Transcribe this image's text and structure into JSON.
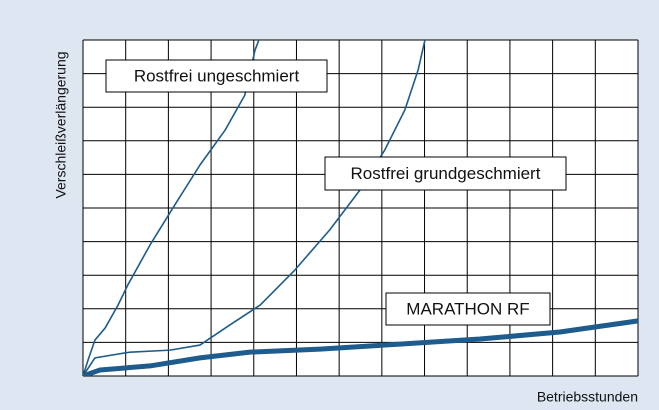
{
  "chart_data": {
    "type": "line",
    "xlabel": "Betriebsstunden",
    "ylabel": "Verschleißverlängerung",
    "xlim": [
      0,
      13
    ],
    "ylim": [
      0,
      10
    ],
    "xticks": [
      0,
      1,
      2,
      3,
      4,
      5,
      6,
      7,
      8,
      9,
      10,
      11,
      12,
      13
    ],
    "yticks": [
      0,
      1,
      2,
      3,
      4,
      5,
      6,
      7,
      8,
      9,
      10
    ],
    "grid": true,
    "series": [
      {
        "name": "Rostfrei ungeschmiert",
        "color": "#1d5c8c",
        "width": 1.6,
        "x": [
          0,
          0.12,
          0.28,
          0.52,
          0.82,
          1.05,
          1.57,
          2.15,
          2.74,
          3.33,
          3.79,
          4.03,
          4.12
        ],
        "values": [
          0,
          0.48,
          1.07,
          1.43,
          2.11,
          2.71,
          3.9,
          5.09,
          6.28,
          7.32,
          8.36,
          9.7,
          10
        ]
      },
      {
        "name": "Rostfrei grundgeschmiert",
        "color": "#1d5c8c",
        "width": 1.6,
        "x": [
          0,
          0.28,
          1.1,
          2.04,
          2.74,
          3.44,
          4.15,
          4.96,
          5.78,
          6.49,
          7.07,
          7.54,
          7.85,
          8.01
        ],
        "values": [
          0,
          0.54,
          0.71,
          0.77,
          0.92,
          1.52,
          2.11,
          3.15,
          4.35,
          5.54,
          6.73,
          7.92,
          9.11,
          10
        ]
      },
      {
        "name": "MARATHON RF",
        "color": "#1d5c8c",
        "width": 5,
        "x": [
          0,
          0.4,
          1.57,
          2.74,
          3.91,
          5.55,
          7.42,
          9.3,
          11.17,
          13
        ],
        "values": [
          0,
          0.18,
          0.3,
          0.54,
          0.71,
          0.8,
          0.95,
          1.1,
          1.31,
          1.64
        ]
      }
    ]
  }
}
